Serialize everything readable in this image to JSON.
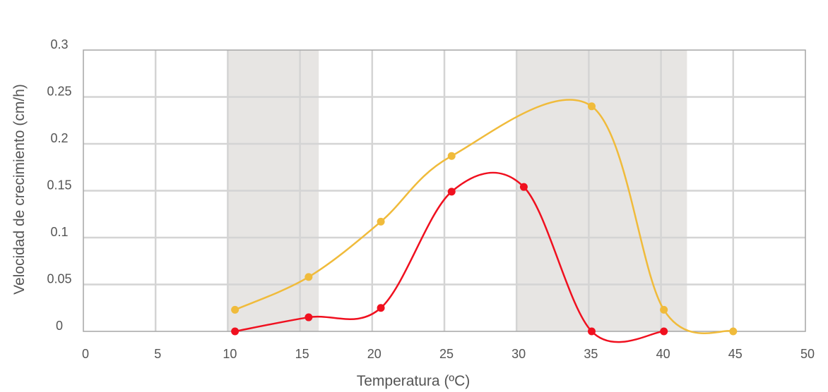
{
  "chart_data": {
    "type": "line",
    "title": "",
    "xlabel": "Temperatura (ºC)",
    "ylabel": "Velocidad de crecimiento (cm/h)",
    "xlim": [
      0,
      50
    ],
    "ylim": [
      0,
      0.3
    ],
    "x_ticks": [
      "0",
      "5",
      "10",
      "15",
      "20",
      "25",
      "30",
      "35",
      "40",
      "45",
      "50"
    ],
    "y_ticks": [
      "0",
      "0.05",
      "0.1",
      "0.15",
      "0.2",
      "0.25",
      "0.3"
    ],
    "grid": true,
    "legend": "none",
    "shaded_ranges": [
      [
        10,
        16.3
      ],
      [
        30,
        41.8
      ]
    ],
    "series": [
      {
        "color": "#f0bb3b",
        "points": [
          [
            10.5,
            0.023
          ],
          [
            15.6,
            0.058
          ],
          [
            20.6,
            0.117
          ],
          [
            25.5,
            0.187
          ],
          [
            35.2,
            0.24
          ],
          [
            40.2,
            0.023
          ],
          [
            45.0,
            0.0
          ]
        ]
      },
      {
        "color": "#f0101f",
        "points": [
          [
            10.5,
            0.0
          ],
          [
            15.6,
            0.015
          ],
          [
            20.6,
            0.025
          ],
          [
            25.5,
            0.149
          ],
          [
            30.5,
            0.154
          ],
          [
            35.2,
            0.0
          ],
          [
            40.2,
            0.0
          ]
        ]
      }
    ],
    "colors": {
      "shade": "#e7e5e3",
      "grid": "#d4d4d4",
      "frame": "#a6a6a6",
      "text": "#555555"
    }
  }
}
